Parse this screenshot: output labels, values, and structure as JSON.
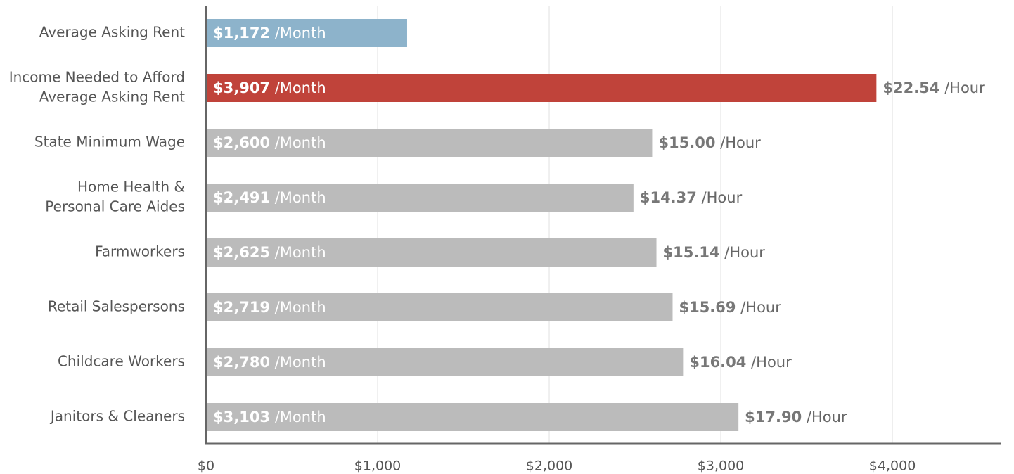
{
  "chart_data": {
    "type": "bar",
    "orientation": "horizontal",
    "categories": [
      [
        "Average Asking Rent"
      ],
      [
        "Income Needed to Afford",
        "Average Asking Rent"
      ],
      [
        "State Minimum Wage"
      ],
      [
        "Home Health &",
        "Personal Care Aides"
      ],
      [
        "Farmworkers"
      ],
      [
        "Retail Salespersons"
      ],
      [
        "Childcare Workers"
      ],
      [
        "Janitors & Cleaners"
      ]
    ],
    "values": [
      1172,
      3907,
      2600,
      2491,
      2625,
      2719,
      2780,
      3103
    ],
    "value_labels": [
      "$1,172",
      "$3,907",
      "$2,600",
      "$2,491",
      "$2,625",
      "$2,719",
      "$2,780",
      "$3,103"
    ],
    "value_unit": "/Month",
    "hourly": [
      null,
      22.54,
      15,
      14.37,
      15.14,
      15.69,
      16.04,
      17.9
    ],
    "hourly_labels": [
      null,
      "$22.54",
      "$15.00",
      "$14.37",
      "$15.14",
      "$15.69",
      "$16.04",
      "$17.90"
    ],
    "hourly_unit": "/Hour",
    "colors": [
      "#8db3cb",
      "#c0433a",
      "#bbbbbb",
      "#bbbbbb",
      "#bbbbbb",
      "#bbbbbb",
      "#bbbbbb",
      "#bbbbbb"
    ],
    "xlim": [
      0,
      4635
    ],
    "xticks": [
      {
        "value": 0,
        "label": "$0"
      },
      {
        "value": 1000,
        "label": "$1,000"
      },
      {
        "value": 2000,
        "label": "$2,000"
      },
      {
        "value": 3000,
        "label": "$3,000"
      },
      {
        "value": 4000,
        "label": "$4,000"
      }
    ],
    "grid": true
  }
}
